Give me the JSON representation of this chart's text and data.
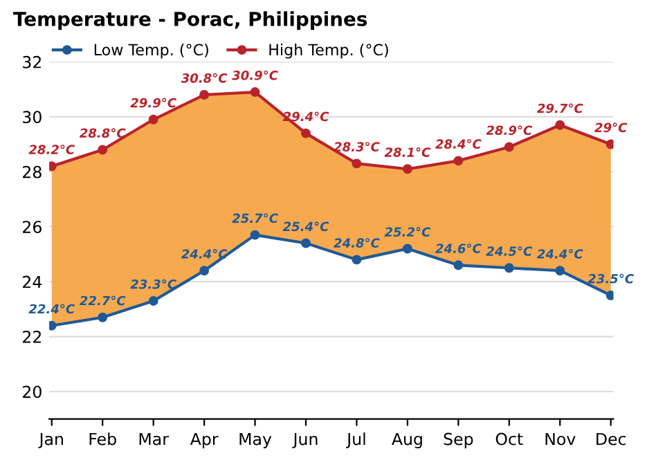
{
  "chart_data": {
    "type": "area",
    "title": "Temperature - Porac, Philippines",
    "categories": [
      "Jan",
      "Feb",
      "Mar",
      "Apr",
      "May",
      "Jun",
      "Jul",
      "Aug",
      "Sep",
      "Oct",
      "Nov",
      "Dec"
    ],
    "series": [
      {
        "name": "Low Temp. (°C)",
        "type": "line",
        "color": "#1f5a96",
        "values": [
          22.4,
          22.7,
          23.3,
          24.4,
          25.7,
          25.4,
          24.8,
          25.2,
          24.6,
          24.5,
          24.4,
          23.5
        ],
        "value_labels": [
          "22.4°C",
          "22.7°C",
          "23.3°C",
          "24.4°C",
          "25.7°C",
          "25.4°C",
          "24.8°C",
          "25.2°C",
          "24.6°C",
          "24.5°C",
          "24.4°C",
          "23.5°C"
        ]
      },
      {
        "name": "High Temp. (°C)",
        "color": "#b8242b",
        "values": [
          28.2,
          28.8,
          29.9,
          30.8,
          30.9,
          29.4,
          28.3,
          28.1,
          28.4,
          28.9,
          29.7,
          29
        ],
        "value_labels": [
          "28.2°C",
          "28.8°C",
          "29.9°C",
          "30.8°C",
          "30.9°C",
          "29.4°C",
          "28.3°C",
          "28.1°C",
          "28.4°C",
          "28.9°C",
          "29.7°C",
          "29°C"
        ]
      }
    ],
    "ylim": [
      19,
      32
    ],
    "yticks": [
      20,
      22,
      24,
      26,
      28,
      30,
      32
    ],
    "grid": "y",
    "legend": "top left",
    "marker": "circle"
  }
}
